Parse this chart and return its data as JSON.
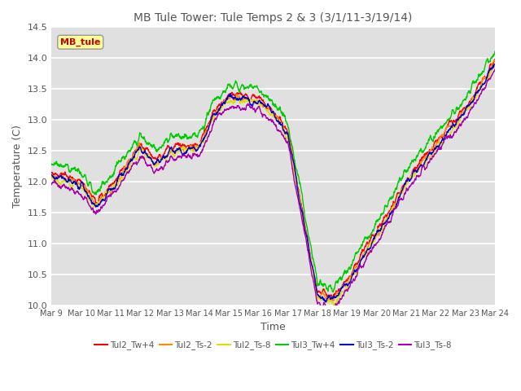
{
  "title": "MB Tule Tower: Tule Temps 2 & 3 (3/1/11-3/19/14)",
  "xlabel": "Time",
  "ylabel": "Temperature (C)",
  "ylim": [
    10.0,
    14.5
  ],
  "xlim": [
    0,
    15
  ],
  "x_tick_labels": [
    "Mar 9",
    "Mar 10",
    "Mar 11",
    "Mar 12",
    "Mar 13",
    "Mar 14",
    "Mar 15",
    "Mar 16",
    "Mar 17",
    "Mar 18",
    "Mar 19",
    "Mar 20",
    "Mar 21",
    "Mar 22",
    "Mar 23",
    "Mar 24"
  ],
  "series_names": [
    "Tul2_Tw+4",
    "Tul2_Ts-2",
    "Tul2_Ts-8",
    "Tul3_Tw+4",
    "Tul3_Ts-2",
    "Tul3_Ts-8"
  ],
  "colors": [
    "#ff0000",
    "#ff8800",
    "#dddd00",
    "#00cc00",
    "#0000dd",
    "#aa00aa"
  ],
  "linewidth": 1.0,
  "legend_box_color": "#ffff99",
  "legend_box_text": "MB_tule",
  "background_color": "#e8e8e8",
  "plot_bg_color": "#e0e0e0",
  "grid_color": "#ffffff",
  "title_color": "#555555",
  "label_color": "#555555",
  "tick_color": "#555555"
}
